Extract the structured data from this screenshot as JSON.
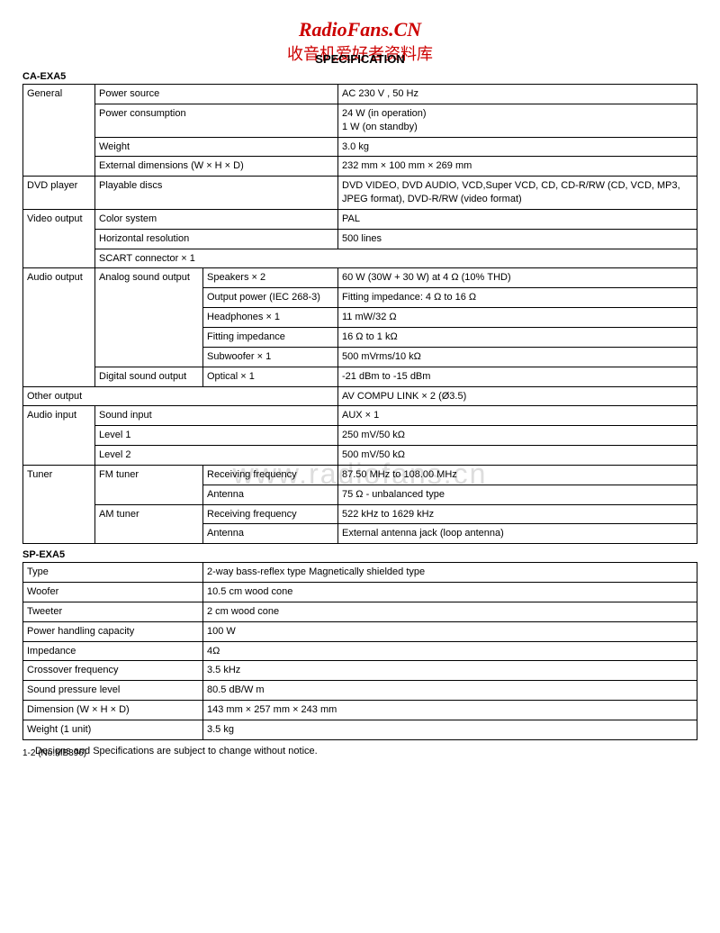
{
  "watermark": {
    "line1": "RadioFans.CN",
    "line2": "收音机爱好者资料库",
    "center": "www.radiofans.cn"
  },
  "title": "SPECIFICATION",
  "section1": "CA-EXA5",
  "section2": "SP-EXA5",
  "footnote": "Designs and Specifications are subject to change without notice.",
  "footer": "1-2 (No.MB396)",
  "t1": {
    "r1c1": "General",
    "r1c2": "Power source",
    "r1c3": "AC 230 V , 50 Hz",
    "r2c2": "Power consumption",
    "r2c3a": "24 W (in operation)",
    "r2c3b": "1 W (on standby)",
    "r3c2": "Weight",
    "r3c3": "3.0 kg",
    "r4c2": "External dimensions (W × H × D)",
    "r4c3": "232 mm × 100 mm × 269 mm",
    "r5c1": "DVD player",
    "r5c2": "Playable discs",
    "r5c3": "DVD VIDEO, DVD AUDIO, VCD,Super VCD, CD, CD-R/RW (CD, VCD, MP3, JPEG format), DVD-R/RW (video format)",
    "r6c1": "Video output",
    "r6c2": "Color system",
    "r6c3": "PAL",
    "r7c2": "Horizontal resolution",
    "r7c3": "500 lines",
    "r8c2": "SCART connector × 1",
    "r9c1": "Audio output",
    "r9c2": "Analog sound output",
    "r9c3": "Speakers × 2",
    "r9c4": "60 W (30W + 30 W) at 4 Ω (10% THD)",
    "r10c3": "Output power (IEC 268-3)",
    "r10c4": "Fitting impedance: 4 Ω to 16 Ω",
    "r11c3": "Headphones × 1",
    "r11c4": "11 mW/32 Ω",
    "r12c3": "Fitting impedance",
    "r12c4": "16 Ω to 1 kΩ",
    "r13c3": "Subwoofer × 1",
    "r13c4": "500 mVrms/10 kΩ",
    "r14c2": "Digital sound output",
    "r14c3": "Optical × 1",
    "r14c4": "-21 dBm to -15 dBm",
    "r15c1": "Other output",
    "r15c4": "AV COMPU LINK × 2 (Ø3.5)",
    "r16c1": "Audio input",
    "r16c2": "Sound input",
    "r16c4": "AUX × 1",
    "r17c2": "Level 1",
    "r17c4": "250 mV/50 kΩ",
    "r18c2": "Level 2",
    "r18c4": "500 mV/50 kΩ",
    "r19c1": "Tuner",
    "r19c2": "FM tuner",
    "r19c3": "Receiving frequency",
    "r19c4": "87.50 MHz to 108.00 MHz",
    "r20c3": "Antenna",
    "r20c4": "75 Ω - unbalanced type",
    "r21c2": "AM tuner",
    "r21c3": "Receiving frequency",
    "r21c4": "522 kHz to 1629 kHz",
    "r22c3": "Antenna",
    "r22c4": "External antenna jack (loop antenna)"
  },
  "t2": {
    "r1c1": "Type",
    "r1c2": "2-way bass-reflex type Magnetically shielded type",
    "r2c1": "Woofer",
    "r2c2": "10.5 cm wood cone",
    "r3c1": "Tweeter",
    "r3c2": "2 cm wood cone",
    "r4c1": "Power handling capacity",
    "r4c2": "100 W",
    "r5c1": "Impedance",
    "r5c2": "4Ω",
    "r6c1": "Crossover frequency",
    "r6c2": "3.5 kHz",
    "r7c1": "Sound pressure level",
    "r7c2": "80.5 dB/W m",
    "r8c1": "Dimension (W × H × D)",
    "r8c2": "143 mm × 257 mm × 243 mm",
    "r9c1": "Weight (1 unit)",
    "r9c2": "3.5 kg"
  }
}
